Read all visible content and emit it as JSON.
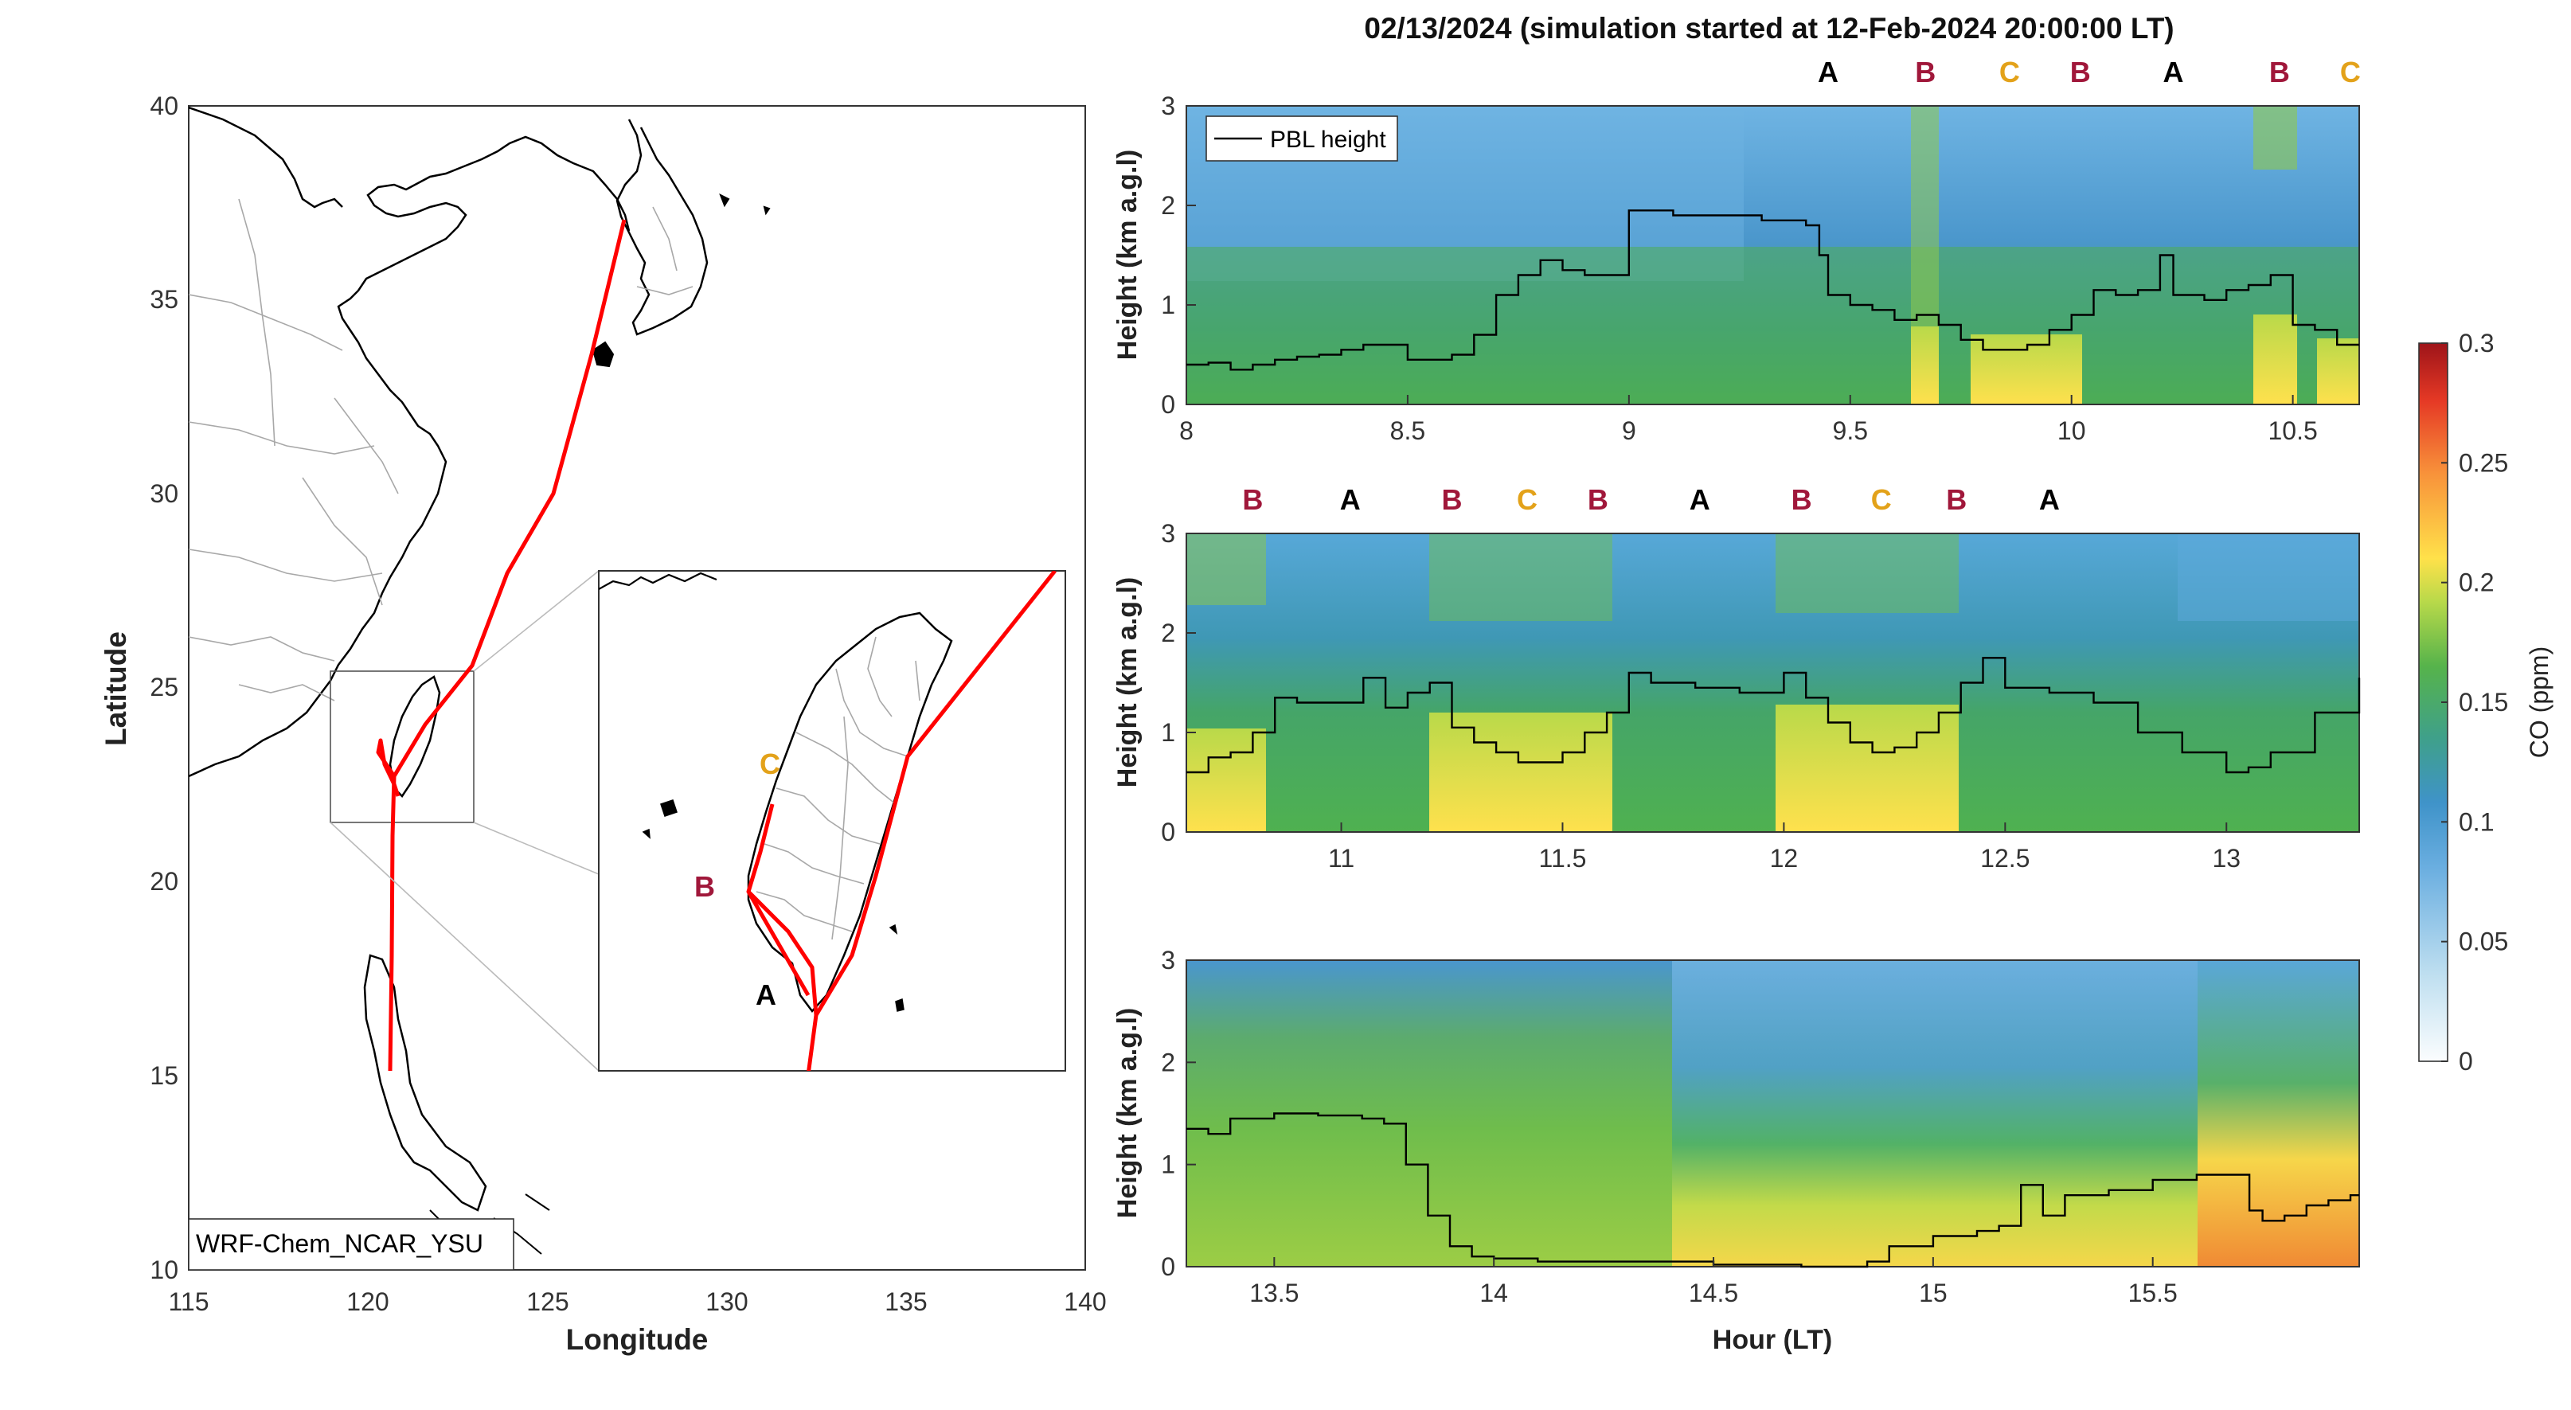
{
  "title": "02/13/2024 (simulation started at 12-Feb-2024 20:00:00 LT)",
  "colors": {
    "A": "#000000",
    "B": "#a0173a",
    "C": "#e3a21a",
    "track": "#ff0000",
    "pbl": "#000000",
    "coastline": "#000000",
    "borders": "#a8a8a8"
  },
  "chart_data": [
    {
      "type": "map",
      "xlabel": "Longitude",
      "ylabel": "Latitude",
      "xlim": [
        115,
        140
      ],
      "ylim": [
        10,
        40
      ],
      "xticks": [
        "115",
        "120",
        "125",
        "130",
        "135",
        "140"
      ],
      "yticks": [
        "10",
        "15",
        "20",
        "25",
        "30",
        "35",
        "40"
      ],
      "model_label": "WRF-Chem_NCAR_YSU",
      "flight_track": [
        [
          127.0,
          37.0
        ],
        [
          126.2,
          33.5
        ],
        [
          125.0,
          30.0
        ],
        [
          123.3,
          27.8
        ],
        [
          122.3,
          25.7
        ],
        [
          121.4,
          24.0
        ],
        [
          121.0,
          23.0
        ],
        [
          120.8,
          22.2
        ],
        [
          120.3,
          21.0
        ],
        [
          120.2,
          18.5
        ],
        [
          120.3,
          15.5
        ]
      ],
      "inset": {
        "lon_range": [
          119.2,
          123.0
        ],
        "lat_range": [
          21.5,
          25.5
        ],
        "track": [
          [
            123.0,
            25.6
          ],
          [
            121.4,
            23.8
          ],
          [
            121.0,
            22.5
          ],
          [
            120.9,
            21.6
          ],
          [
            120.85,
            21.0
          ]
        ],
        "loops": [
          [
            [
              120.85,
              22.1
            ],
            [
              120.1,
              22.85
            ],
            [
              120.5,
              23.6
            ]
          ],
          [
            [
              120.1,
              22.85
            ],
            [
              120.7,
              22.3
            ],
            [
              120.85,
              22.1
            ]
          ]
        ],
        "site_labels": [
          {
            "label": "A",
            "lon": 120.6,
            "lat": 22.0
          },
          {
            "label": "B",
            "lon": 119.95,
            "lat": 22.85
          },
          {
            "label": "C",
            "lon": 120.4,
            "lat": 23.55
          }
        ]
      }
    },
    {
      "type": "heatmap",
      "xlabel": "",
      "ylabel": "Height (km a.g.l)",
      "xlim": [
        8,
        10.65
      ],
      "ylim": [
        0,
        3
      ],
      "xticks": [
        "8",
        "8.5",
        "9",
        "9.5",
        "10",
        "10.5"
      ],
      "yticks": [
        "0",
        "1",
        "2",
        "3"
      ],
      "legend_label": "PBL height",
      "pbl_height": {
        "x": [
          8.0,
          8.05,
          8.1,
          8.15,
          8.2,
          8.25,
          8.3,
          8.35,
          8.4,
          8.45,
          8.5,
          8.55,
          8.6,
          8.65,
          8.7,
          8.75,
          8.8,
          8.85,
          8.9,
          8.95,
          9.0,
          9.1,
          9.2,
          9.3,
          9.4,
          9.43,
          9.45,
          9.5,
          9.55,
          9.6,
          9.65,
          9.7,
          9.75,
          9.8,
          9.85,
          9.9,
          9.95,
          10.0,
          10.05,
          10.1,
          10.15,
          10.2,
          10.23,
          10.25,
          10.3,
          10.35,
          10.4,
          10.45,
          10.5,
          10.55,
          10.6,
          10.65
        ],
        "y": [
          0.4,
          0.42,
          0.35,
          0.4,
          0.45,
          0.48,
          0.5,
          0.55,
          0.6,
          0.6,
          0.45,
          0.45,
          0.5,
          0.7,
          1.1,
          1.3,
          1.45,
          1.35,
          1.3,
          1.3,
          1.95,
          1.9,
          1.9,
          1.85,
          1.8,
          1.5,
          1.1,
          1.0,
          0.95,
          0.85,
          0.9,
          0.8,
          0.65,
          0.55,
          0.55,
          0.6,
          0.75,
          0.9,
          1.15,
          1.1,
          1.15,
          1.5,
          1.1,
          1.1,
          1.05,
          1.15,
          1.2,
          1.3,
          0.8,
          0.75,
          0.6,
          0.6
        ]
      },
      "site_labels": [
        {
          "label": "A",
          "x": 9.45
        },
        {
          "label": "B",
          "x": 9.67
        },
        {
          "label": "C",
          "x": 9.86
        },
        {
          "label": "B",
          "x": 10.02
        },
        {
          "label": "A",
          "x": 10.23
        },
        {
          "label": "B",
          "x": 10.47
        },
        {
          "label": "C",
          "x": 10.63
        }
      ]
    },
    {
      "type": "heatmap",
      "xlabel": "",
      "ylabel": "Height (km a.g.l)",
      "xlim": [
        10.65,
        13.3
      ],
      "ylim": [
        0,
        3
      ],
      "xticks": [
        "11",
        "11.5",
        "12",
        "12.5",
        "13"
      ],
      "yticks": [
        "0",
        "1",
        "2",
        "3"
      ],
      "pbl_height": {
        "x": [
          10.65,
          10.7,
          10.75,
          10.8,
          10.85,
          10.9,
          11.0,
          11.05,
          11.1,
          11.15,
          11.2,
          11.25,
          11.3,
          11.35,
          11.4,
          11.45,
          11.5,
          11.55,
          11.6,
          11.65,
          11.7,
          11.8,
          11.9,
          12.0,
          12.05,
          12.1,
          12.15,
          12.2,
          12.25,
          12.3,
          12.35,
          12.4,
          12.45,
          12.5,
          12.6,
          12.7,
          12.8,
          12.9,
          13.0,
          13.05,
          13.1,
          13.2,
          13.3
        ],
        "y": [
          0.6,
          0.75,
          0.8,
          1.0,
          1.35,
          1.3,
          1.3,
          1.55,
          1.25,
          1.4,
          1.5,
          1.05,
          0.9,
          0.8,
          0.7,
          0.7,
          0.8,
          1.0,
          1.2,
          1.6,
          1.5,
          1.45,
          1.4,
          1.6,
          1.35,
          1.1,
          0.9,
          0.8,
          0.85,
          1.0,
          1.2,
          1.5,
          1.75,
          1.45,
          1.4,
          1.3,
          1.0,
          0.8,
          0.6,
          0.65,
          0.8,
          1.2,
          1.55
        ]
      },
      "site_labels": [
        {
          "label": "B",
          "x": 10.8
        },
        {
          "label": "A",
          "x": 11.02
        },
        {
          "label": "B",
          "x": 11.25
        },
        {
          "label": "C",
          "x": 11.42
        },
        {
          "label": "B",
          "x": 11.58
        },
        {
          "label": "A",
          "x": 11.81
        },
        {
          "label": "B",
          "x": 12.04
        },
        {
          "label": "C",
          "x": 12.22
        },
        {
          "label": "B",
          "x": 12.39
        },
        {
          "label": "A",
          "x": 12.6
        }
      ]
    },
    {
      "type": "heatmap",
      "xlabel": "Hour (LT)",
      "ylabel": "Height (km a.g.l)",
      "xlim": [
        13.3,
        15.97
      ],
      "ylim": [
        0,
        3
      ],
      "xticks": [
        "13.5",
        "14",
        "14.5",
        "15",
        "15.5"
      ],
      "yticks": [
        "0",
        "1",
        "2",
        "3"
      ],
      "pbl_height": {
        "x": [
          13.3,
          13.35,
          13.4,
          13.5,
          13.6,
          13.7,
          13.75,
          13.8,
          13.85,
          13.9,
          13.95,
          14.0,
          14.1,
          14.3,
          14.5,
          14.7,
          14.85,
          14.9,
          15.0,
          15.1,
          15.15,
          15.2,
          15.25,
          15.3,
          15.4,
          15.5,
          15.6,
          15.7,
          15.72,
          15.75,
          15.8,
          15.85,
          15.9,
          15.95,
          15.97
        ],
        "y": [
          1.35,
          1.3,
          1.45,
          1.5,
          1.48,
          1.45,
          1.4,
          1.0,
          0.5,
          0.2,
          0.1,
          0.08,
          0.05,
          0.05,
          0.02,
          0.0,
          0.05,
          0.2,
          0.3,
          0.35,
          0.4,
          0.8,
          0.5,
          0.7,
          0.75,
          0.85,
          0.9,
          0.9,
          0.55,
          0.45,
          0.5,
          0.6,
          0.65,
          0.7,
          0.7
        ]
      }
    },
    {
      "type": "colorbar",
      "label": "CO (ppm)",
      "ticks": [
        "0",
        "0.05",
        "0.1",
        "0.15",
        "0.2",
        "0.25",
        "0.3"
      ],
      "range": [
        0,
        0.3
      ]
    }
  ]
}
